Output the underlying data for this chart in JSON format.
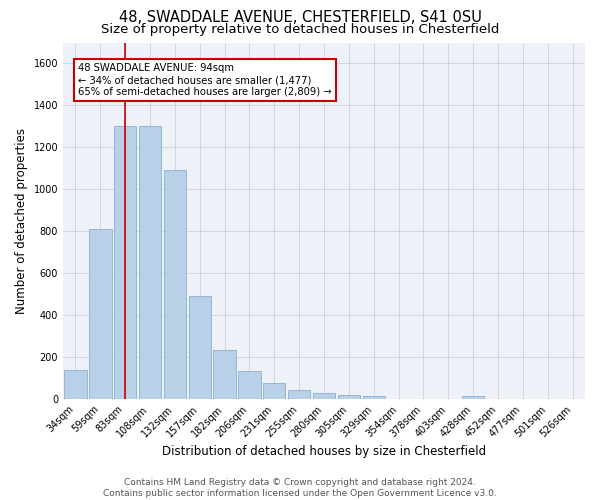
{
  "title": "48, SWADDALE AVENUE, CHESTERFIELD, S41 0SU",
  "subtitle": "Size of property relative to detached houses in Chesterfield",
  "xlabel": "Distribution of detached houses by size in Chesterfield",
  "ylabel": "Number of detached properties",
  "categories": [
    "34sqm",
    "59sqm",
    "83sqm",
    "108sqm",
    "132sqm",
    "157sqm",
    "182sqm",
    "206sqm",
    "231sqm",
    "255sqm",
    "280sqm",
    "305sqm",
    "329sqm",
    "354sqm",
    "378sqm",
    "403sqm",
    "428sqm",
    "452sqm",
    "477sqm",
    "501sqm",
    "526sqm"
  ],
  "values": [
    140,
    810,
    1300,
    1300,
    1090,
    490,
    235,
    135,
    75,
    45,
    28,
    20,
    14,
    0,
    0,
    0,
    14,
    0,
    0,
    0,
    0
  ],
  "bar_color": "#b8d0e8",
  "bar_edge_color": "#8ab0d0",
  "vline_x_index": 2,
  "vline_color": "#cc0000",
  "annotation_title": "48 SWADDALE AVENUE: 94sqm",
  "annotation_line1": "← 34% of detached houses are smaller (1,477)",
  "annotation_line2": "65% of semi-detached houses are larger (2,809) →",
  "annotation_box_color": "#ffffff",
  "annotation_box_edge": "#cc0000",
  "ylim": [
    0,
    1700
  ],
  "yticks": [
    0,
    200,
    400,
    600,
    800,
    1000,
    1200,
    1400,
    1600
  ],
  "footer1": "Contains HM Land Registry data © Crown copyright and database right 2024.",
  "footer2": "Contains public sector information licensed under the Open Government Licence v3.0.",
  "bg_color": "#eef2f8",
  "grid_color": "#c8c8d0",
  "title_fontsize": 10.5,
  "subtitle_fontsize": 9.5,
  "axis_label_fontsize": 8.5,
  "tick_fontsize": 7,
  "footer_fontsize": 6.5
}
